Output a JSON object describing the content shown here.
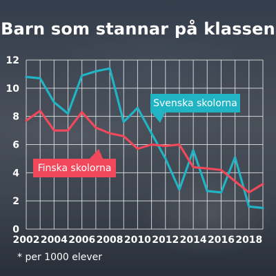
{
  "title": "Barn som stannar på klassen",
  "footnote": "* per 1000 elever",
  "colors": {
    "svenska": "#21b4c4",
    "finska": "#f2485c",
    "axis_text": "#ffffff",
    "grid": "#ffffff"
  },
  "chart_data": {
    "type": "line",
    "title": "Barn som stannar på klassen",
    "xlabel": "",
    "ylabel": "",
    "xlim": [
      2002,
      2019
    ],
    "ylim": [
      0,
      12
    ],
    "grid": true,
    "x_ticks": [
      "2002",
      "2004",
      "2006",
      "2008",
      "2010",
      "2012",
      "2014",
      "2016",
      "2018"
    ],
    "y_ticks": [
      "0",
      "2",
      "4",
      "6",
      "8",
      "10",
      "12"
    ],
    "x": [
      2002,
      2003,
      2004,
      2005,
      2006,
      2007,
      2008,
      2009,
      2010,
      2011,
      2012,
      2013,
      2014,
      2015,
      2016,
      2017,
      2018,
      2019
    ],
    "series": [
      {
        "name": "Svenska skolorna",
        "color": "#21b4c4",
        "values": [
          10.8,
          10.7,
          9.0,
          8.2,
          10.9,
          11.2,
          11.4,
          7.6,
          8.6,
          6.8,
          5.0,
          2.8,
          5.6,
          2.7,
          2.6,
          5.1,
          1.6,
          1.5
        ]
      },
      {
        "name": "Finska skolorna",
        "color": "#f2485c",
        "values": [
          7.7,
          8.4,
          7.0,
          7.0,
          8.3,
          7.2,
          6.8,
          6.6,
          5.7,
          6.0,
          5.9,
          6.0,
          4.4,
          4.3,
          4.2,
          3.4,
          2.6,
          3.2
        ]
      }
    ]
  }
}
